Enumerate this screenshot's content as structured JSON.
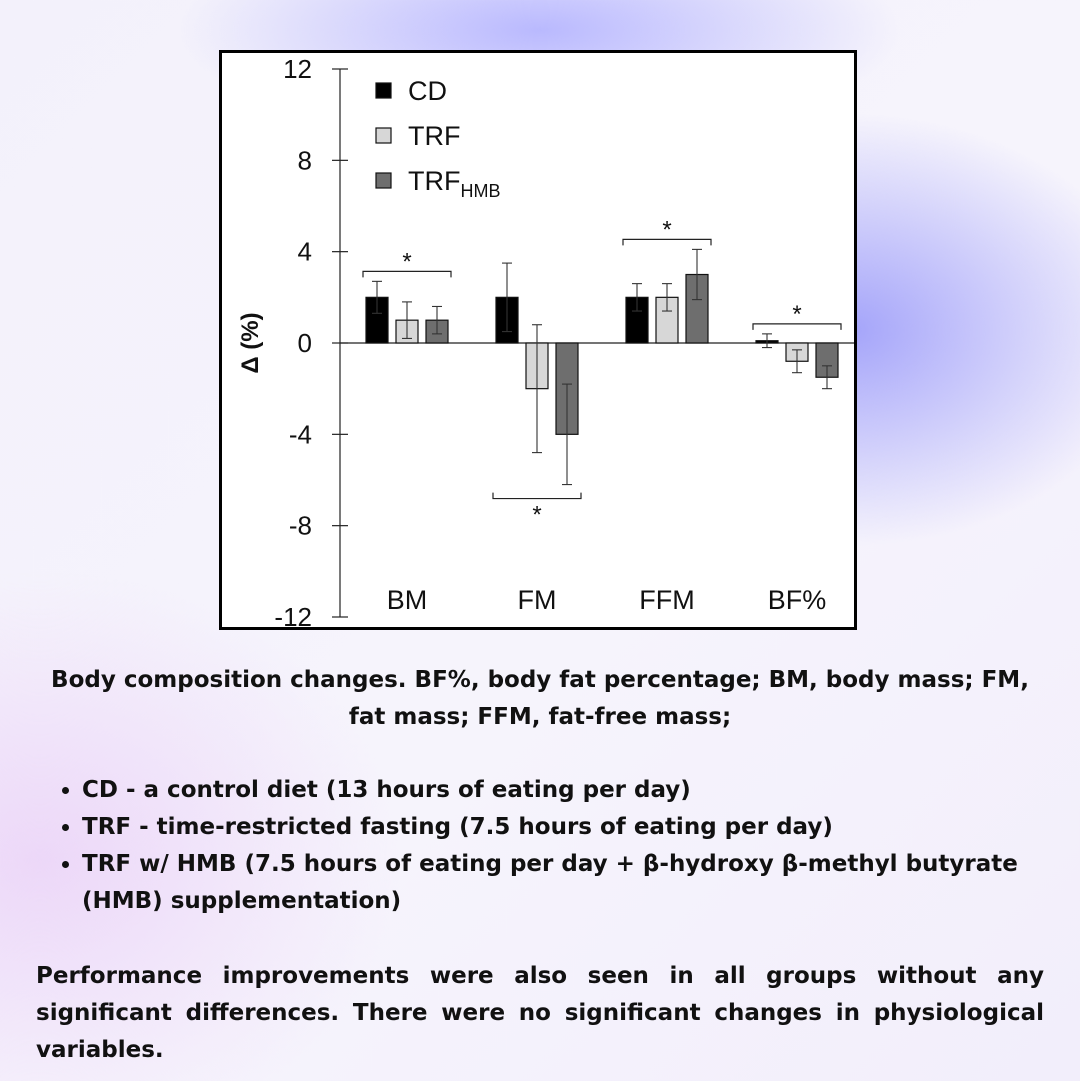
{
  "chart_data": {
    "type": "bar",
    "categories": [
      "BM",
      "FM",
      "FFM",
      "BF%"
    ],
    "ylabel": "Δ (%)",
    "ylim": [
      -12,
      12
    ],
    "yticks": [
      12,
      8,
      4,
      0,
      -4,
      -8,
      -12
    ],
    "legend_position": "top-left",
    "series": [
      {
        "name": "CD",
        "sub": "",
        "color": "#000000",
        "values": [
          2.0,
          2.0,
          2.0,
          0.1
        ],
        "errors": [
          0.7,
          1.5,
          0.6,
          0.3
        ]
      },
      {
        "name": "TRF",
        "sub": "",
        "color": "#d7d7d7",
        "values": [
          1.0,
          -2.0,
          2.0,
          -0.8
        ],
        "errors": [
          0.8,
          2.8,
          0.6,
          0.5
        ]
      },
      {
        "name": "TRF",
        "sub": "HMB",
        "color": "#6e6e6e",
        "values": [
          1.0,
          -4.0,
          3.0,
          -1.5
        ],
        "errors": [
          0.6,
          2.2,
          1.1,
          0.5
        ]
      }
    ],
    "significance": [
      {
        "category": "BM",
        "label": "*",
        "position": "above"
      },
      {
        "category": "FM",
        "label": "*",
        "position": "below"
      },
      {
        "category": "FFM",
        "label": "*",
        "position": "above"
      },
      {
        "category": "BF%",
        "label": "*",
        "position": "above"
      }
    ]
  },
  "caption": "Body composition changes. BF%, body fat percentage; BM, body mass; FM, fat mass; FFM, fat-free mass;",
  "bullets": [
    "CD - a control diet (13 hours of eating per day)",
    "TRF - time-restricted fasting (7.5 hours of eating per day)",
    "TRF w/ HMB (7.5 hours of eating per day + β-hydroxy β-methyl butyrate (HMB) supplementation)"
  ],
  "note": "Performance improvements were also seen in all groups without any significant differences. There were no significant changes in physiological variables."
}
